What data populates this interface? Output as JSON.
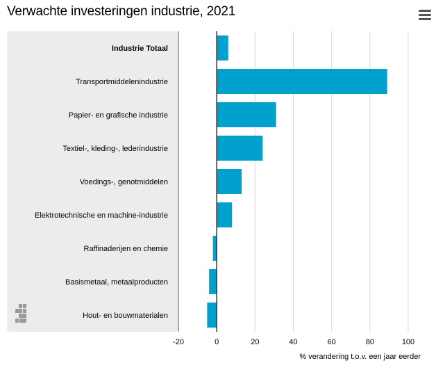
{
  "header": {
    "title": "Verwachte investeringen industrie, 2021",
    "menu_icon": "hamburger-menu-icon"
  },
  "colors": {
    "bar": "#00a1cd",
    "panel": "#ececec",
    "axis": "#555555",
    "grid": "#d8d8d8"
  },
  "logo": {
    "name": "cbs-logo-icon"
  },
  "chart_data": {
    "type": "bar",
    "orientation": "horizontal",
    "title": "Verwachte investeringen industrie, 2021",
    "categories": [
      "Industrie Totaal",
      "Transportmiddelenindustrie",
      "Papier- en grafische industrie",
      "Textiel-, kleding-, lederindustrie",
      "Voedings-, genotmiddelen",
      "Elektrotechnische en machine-industrie",
      "Raffinaderijen en chemie",
      "Basismetaal, metaalproducten",
      "Hout- en bouwmaterialen"
    ],
    "bold_categories": [
      "Industrie Totaal"
    ],
    "values": [
      6,
      89,
      31,
      24,
      13,
      8,
      -2,
      -4,
      -5
    ],
    "xlabel": "% verandering t.o.v. een jaar eerder",
    "ylabel": "",
    "xlim": [
      -20,
      100
    ],
    "xticks": [
      -20,
      0,
      20,
      40,
      60,
      80,
      100
    ],
    "grid": true,
    "legend": "none"
  }
}
